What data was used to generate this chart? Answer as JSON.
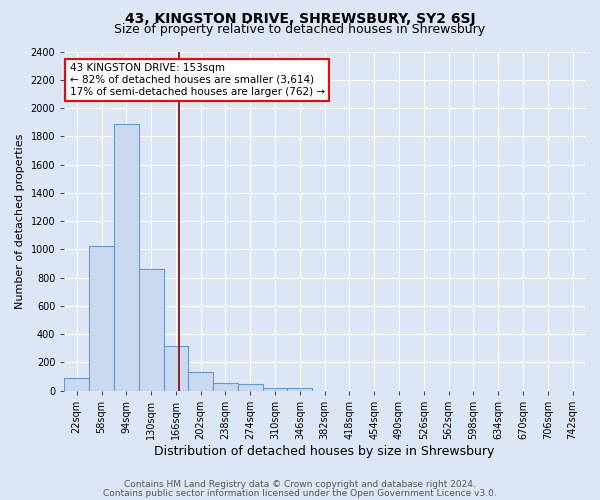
{
  "title1": "43, KINGSTON DRIVE, SHREWSBURY, SY2 6SJ",
  "title2": "Size of property relative to detached houses in Shrewsbury",
  "xlabel": "Distribution of detached houses by size in Shrewsbury",
  "ylabel": "Number of detached properties",
  "bin_labels": [
    "22sqm",
    "58sqm",
    "94sqm",
    "130sqm",
    "166sqm",
    "202sqm",
    "238sqm",
    "274sqm",
    "310sqm",
    "346sqm",
    "382sqm",
    "418sqm",
    "454sqm",
    "490sqm",
    "526sqm",
    "562sqm",
    "598sqm",
    "634sqm",
    "670sqm",
    "706sqm",
    "742sqm"
  ],
  "bar_values": [
    90,
    1020,
    1890,
    860,
    315,
    130,
    55,
    45,
    20,
    15,
    0,
    0,
    0,
    0,
    0,
    0,
    0,
    0,
    0,
    0,
    0
  ],
  "bar_color": "#cad9ef",
  "bar_edge_color": "#6699cc",
  "ylim": [
    0,
    2400
  ],
  "yticks": [
    0,
    200,
    400,
    600,
    800,
    1000,
    1200,
    1400,
    1600,
    1800,
    2000,
    2200,
    2400
  ],
  "annotation_text": "43 KINGSTON DRIVE: 153sqm\n← 82% of detached houses are smaller (3,614)\n17% of semi-detached houses are larger (762) →",
  "annotation_box_color": "white",
  "annotation_box_edge": "red",
  "footer1": "Contains HM Land Registry data © Crown copyright and database right 2024.",
  "footer2": "Contains public sector information licensed under the Open Government Licence v3.0.",
  "bg_color": "#dce6f5",
  "plot_bg_color": "#dce6f5",
  "grid_color": "white",
  "title1_fontsize": 10,
  "title2_fontsize": 9,
  "xlabel_fontsize": 9,
  "ylabel_fontsize": 8,
  "tick_fontsize": 7,
  "footer_fontsize": 6.5
}
